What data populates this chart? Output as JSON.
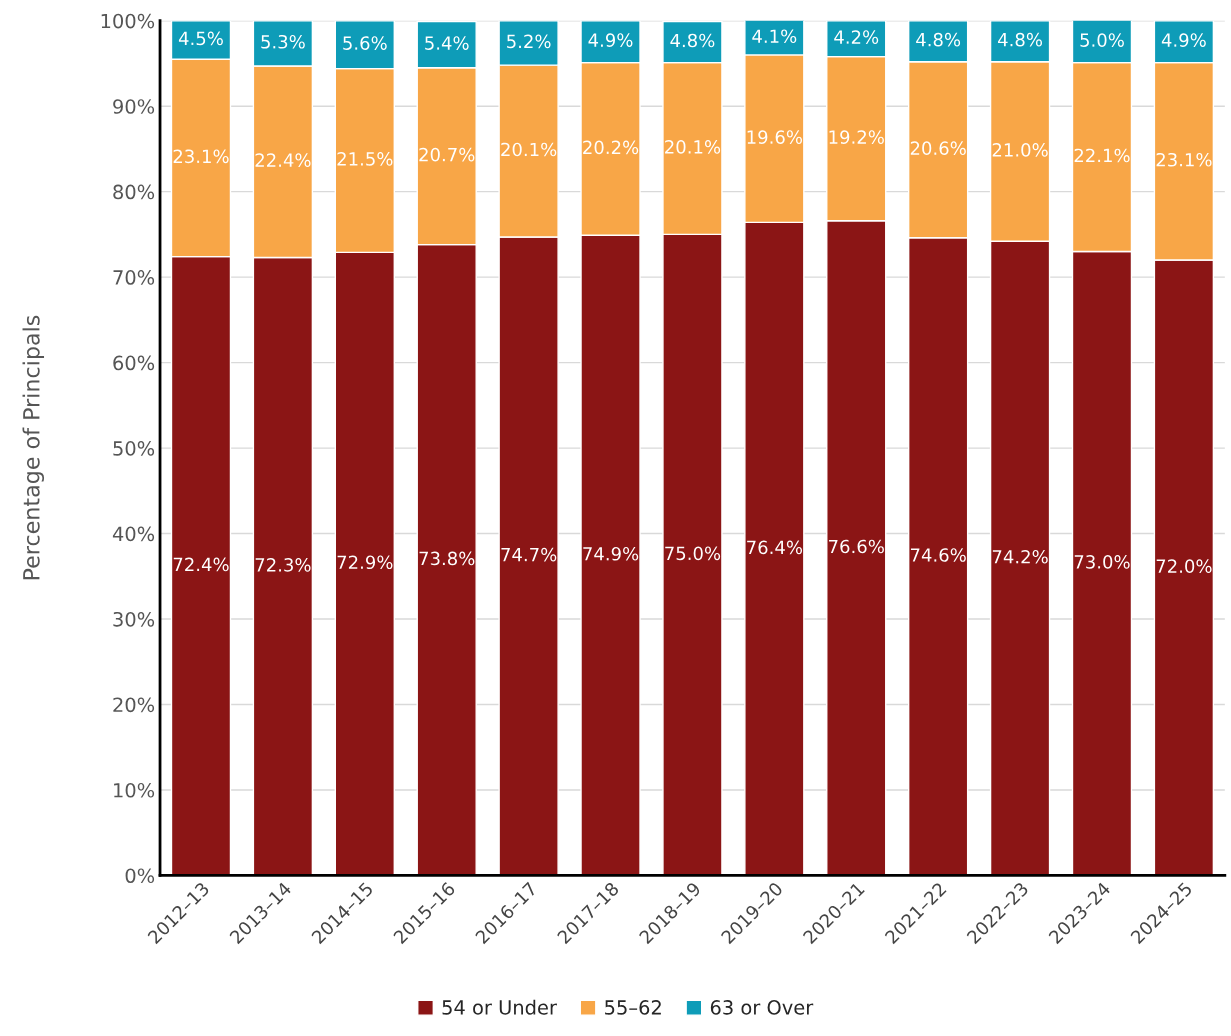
{
  "chart_data": {
    "type": "bar",
    "stacked": true,
    "ylabel": "Percentage of Principals",
    "categories": [
      "2012–13",
      "2013–14",
      "2014–15",
      "2015–16",
      "2016–17",
      "2017–18",
      "2018–19",
      "2019–20",
      "2020–21",
      "2021–22",
      "2022–23",
      "2023–24",
      "2024–25"
    ],
    "series": [
      {
        "name": "54 or Under",
        "color": "#8b1515",
        "values": [
          72.4,
          72.3,
          72.9,
          73.8,
          74.7,
          74.9,
          75.0,
          76.4,
          76.6,
          74.6,
          74.2,
          73.0,
          72.0
        ],
        "value_labels": [
          "72.4%",
          "72.3%",
          "72.9%",
          "73.8%",
          "74.7%",
          "74.9%",
          "75.0%",
          "76.4%",
          "76.6%",
          "74.6%",
          "74.2%",
          "73.0%",
          "72.0%"
        ]
      },
      {
        "name": "55–62",
        "color": "#f8a647",
        "values": [
          23.1,
          22.4,
          21.5,
          20.7,
          20.1,
          20.2,
          20.1,
          19.6,
          19.2,
          20.6,
          21.0,
          22.1,
          23.1
        ],
        "value_labels": [
          "23.1%",
          "22.4%",
          "21.5%",
          "20.7%",
          "20.1%",
          "20.2%",
          "20.1%",
          "19.6%",
          "19.2%",
          "20.6%",
          "21.0%",
          "22.1%",
          "23.1%"
        ]
      },
      {
        "name": "63 or Over",
        "color": "#0e9cb8",
        "values": [
          4.5,
          5.3,
          5.6,
          5.4,
          5.2,
          4.9,
          4.8,
          4.1,
          4.2,
          4.8,
          4.8,
          5.0,
          4.9
        ],
        "value_labels": [
          "4.5%",
          "5.3%",
          "5.6%",
          "5.4%",
          "5.2%",
          "4.9%",
          "4.8%",
          "4.1%",
          "4.2%",
          "4.8%",
          "4.8%",
          "5.0%",
          "4.9%"
        ]
      }
    ],
    "ylim": [
      0,
      100
    ],
    "yticks": [
      {
        "value": 0,
        "label": "0%"
      },
      {
        "value": 10,
        "label": "10%"
      },
      {
        "value": 20,
        "label": "20%"
      },
      {
        "value": 30,
        "label": "30%"
      },
      {
        "value": 40,
        "label": "40%"
      },
      {
        "value": 50,
        "label": "50%"
      },
      {
        "value": 60,
        "label": "60%"
      },
      {
        "value": 70,
        "label": "70%"
      },
      {
        "value": 80,
        "label": "80%"
      },
      {
        "value": 90,
        "label": "90%"
      },
      {
        "value": 100,
        "label": "100%"
      }
    ],
    "grid": "y",
    "legend": "bottom"
  }
}
